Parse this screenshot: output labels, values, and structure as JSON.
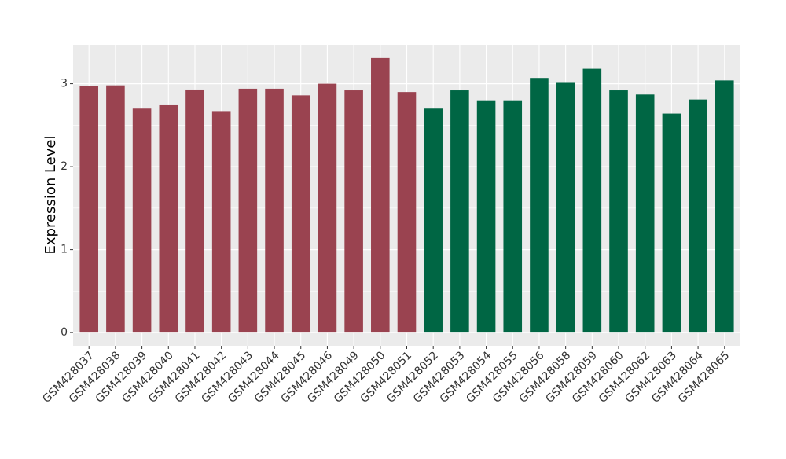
{
  "chart_data": {
    "type": "bar",
    "y_label": "Expression Level",
    "categories": [
      "GSM428037",
      "GSM428038",
      "GSM428039",
      "GSM428040",
      "GSM428041",
      "GSM428042",
      "GSM428043",
      "GSM428044",
      "GSM428045",
      "GSM428046",
      "GSM428049",
      "GSM428050",
      "GSM428051",
      "GSM428052",
      "GSM428053",
      "GSM428054",
      "GSM428055",
      "GSM428056",
      "GSM428058",
      "GSM428059",
      "GSM428060",
      "GSM428062",
      "GSM428063",
      "GSM428064",
      "GSM428065"
    ],
    "values": [
      2.97,
      2.98,
      2.7,
      2.75,
      2.93,
      2.67,
      2.94,
      2.94,
      2.86,
      3.0,
      2.92,
      3.31,
      2.9,
      2.7,
      2.92,
      2.8,
      2.8,
      3.07,
      3.02,
      3.18,
      2.92,
      2.87,
      2.64,
      2.81,
      3.04
    ],
    "colors": [
      "#9a4350",
      "#9a4350",
      "#9a4350",
      "#9a4350",
      "#9a4350",
      "#9a4350",
      "#9a4350",
      "#9a4350",
      "#9a4350",
      "#9a4350",
      "#9a4350",
      "#9a4350",
      "#9a4350",
      "#006644",
      "#006644",
      "#006644",
      "#006644",
      "#006644",
      "#006644",
      "#006644",
      "#006644",
      "#006644",
      "#006644",
      "#006644",
      "#006644"
    ],
    "ylim": [
      -0.16,
      3.47
    ],
    "yticks": [
      0,
      1,
      2,
      3
    ],
    "grid": true
  }
}
